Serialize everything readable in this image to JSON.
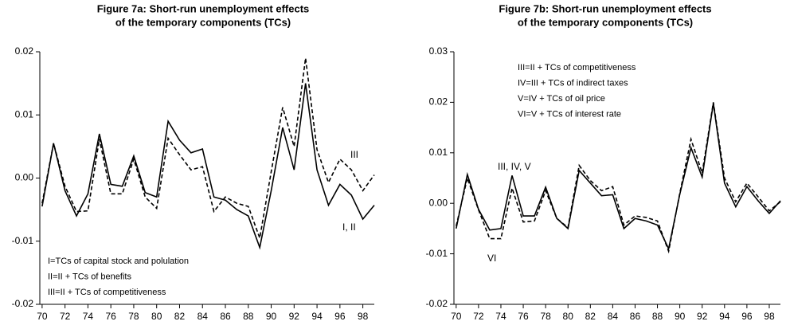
{
  "chart_data": [
    {
      "type": "line",
      "title": [
        "Figure 7a: Short-run unemployment effects",
        "of the temporary components (TCs)"
      ],
      "x": [
        70,
        71,
        72,
        73,
        74,
        75,
        76,
        77,
        78,
        79,
        80,
        81,
        82,
        83,
        84,
        85,
        86,
        87,
        88,
        89,
        90,
        91,
        92,
        93,
        94,
        95,
        96,
        97,
        98,
        99
      ],
      "xlim": [
        69.8,
        99
      ],
      "xticks": [
        70,
        72,
        74,
        76,
        78,
        80,
        82,
        84,
        86,
        88,
        90,
        92,
        94,
        96,
        98
      ],
      "ylim": [
        -0.02,
        0.02
      ],
      "yticks": [
        -0.02,
        -0.01,
        {
          "value": 0,
          "label": "0.00"
        },
        0.01,
        0.02
      ],
      "series": [
        {
          "name": "I, II",
          "color": "#000000",
          "dash": false,
          "values": [
            -0.0045,
            0.0055,
            -0.002,
            -0.006,
            -0.0025,
            0.007,
            -0.001,
            -0.0013,
            0.0035,
            -0.0023,
            -0.003,
            0.009,
            0.006,
            0.004,
            0.0046,
            -0.003,
            -0.0035,
            -0.005,
            -0.006,
            -0.011,
            -0.002,
            0.008,
            0.0013,
            0.015,
            0.0013,
            -0.0043,
            -0.001,
            -0.0027,
            -0.0065,
            -0.0043
          ]
        },
        {
          "name": "III",
          "color": "#000000",
          "dash": true,
          "values": [
            -0.004,
            0.0055,
            -0.0013,
            -0.0053,
            -0.0052,
            0.0062,
            -0.0025,
            -0.0025,
            0.003,
            -0.003,
            -0.0048,
            0.0063,
            0.0037,
            0.0013,
            0.0018,
            -0.0053,
            -0.003,
            -0.004,
            -0.0045,
            -0.0095,
            0.001,
            0.0112,
            0.005,
            0.019,
            0.0045,
            -0.0007,
            0.003,
            0.0013,
            -0.002,
            0.0005
          ]
        }
      ],
      "annotations": [
        "I=TCs of capital stock and polulation",
        "II=II + TCs of benefits",
        "III=II + TCs of competitiveness"
      ]
    },
    {
      "type": "line",
      "title": [
        "Figure 7b: Short-run unemployment effects",
        "of the temporary components (TCs)"
      ],
      "x": [
        70,
        71,
        72,
        73,
        74,
        75,
        76,
        77,
        78,
        79,
        80,
        81,
        82,
        83,
        84,
        85,
        86,
        87,
        88,
        89,
        90,
        91,
        92,
        93,
        94,
        95,
        96,
        97,
        98,
        99
      ],
      "xlim": [
        69.8,
        99
      ],
      "xticks": [
        70,
        72,
        74,
        76,
        78,
        80,
        82,
        84,
        86,
        88,
        90,
        92,
        94,
        96,
        98
      ],
      "ylim": [
        -0.02,
        0.03
      ],
      "yticks": [
        -0.02,
        -0.01,
        {
          "value": 0,
          "label": "0.00"
        },
        0.01,
        0.02,
        0.03
      ],
      "series": [
        {
          "name": "III, IV, V",
          "color": "#000000",
          "dash": false,
          "values": [
            -0.005,
            0.0057,
            -0.0012,
            -0.0053,
            -0.005,
            0.0055,
            -0.0025,
            -0.0025,
            0.0032,
            -0.003,
            -0.005,
            0.0065,
            0.004,
            0.0015,
            0.0017,
            -0.005,
            -0.003,
            -0.0035,
            -0.0043,
            -0.009,
            0.0018,
            0.011,
            0.0052,
            0.0198,
            0.004,
            -0.0007,
            0.0033,
            0.0005,
            -0.002,
            0.0005
          ]
        },
        {
          "name": "VI",
          "color": "#000000",
          "dash": true,
          "values": [
            -0.0045,
            0.005,
            -0.0013,
            -0.007,
            -0.007,
            0.003,
            -0.0037,
            -0.0035,
            0.0025,
            -0.003,
            -0.0048,
            0.0075,
            0.0045,
            0.0025,
            0.0033,
            -0.0043,
            -0.0025,
            -0.0028,
            -0.0035,
            -0.0095,
            0.002,
            0.0127,
            0.006,
            0.02,
            0.005,
            0.0003,
            0.004,
            0.0013,
            -0.0015,
            0.0003
          ]
        }
      ],
      "annotations": [
        "III=II + TCs of competitiveness",
        "IV=III + TCs of indirect taxes",
        "V=IV + TCs of oil price",
        "VI=V + TCs of interest rate"
      ]
    }
  ]
}
